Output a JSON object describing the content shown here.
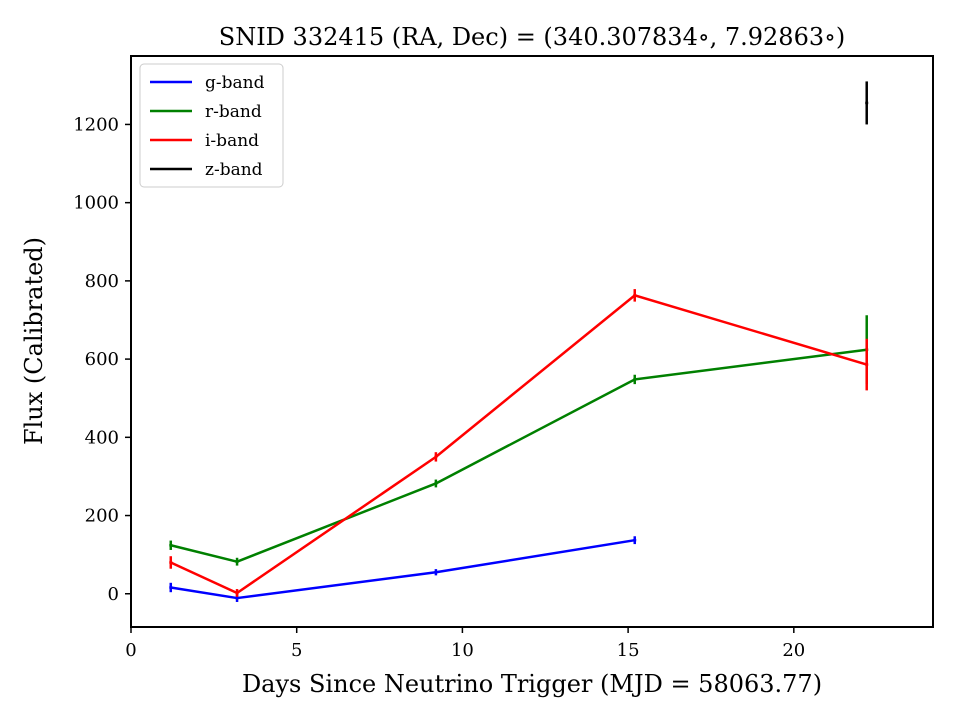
{
  "chart_data": {
    "type": "line",
    "title": "SNID 332415   (RA, Dec) = (340.307834∘, 7.92863∘)",
    "xlabel": "Days Since Neutrino Trigger (MJD = 58063.77)",
    "ylabel": "Flux (Calibrated)",
    "xlim": [
      0,
      24.2
    ],
    "ylim": [
      -85,
      1375
    ],
    "xticks": [
      0,
      5,
      10,
      15,
      20
    ],
    "yticks": [
      0,
      200,
      400,
      600,
      800,
      1000,
      1200
    ],
    "legend_position": "top-left",
    "grid": false,
    "series": [
      {
        "name": "g-band",
        "color": "#0000ff",
        "points": [
          {
            "x": 1.2,
            "y": 16,
            "err": 12
          },
          {
            "x": 3.2,
            "y": -11,
            "err": 10
          },
          {
            "x": 9.2,
            "y": 55,
            "err": 8
          },
          {
            "x": 15.2,
            "y": 137,
            "err": 10
          }
        ]
      },
      {
        "name": "r-band",
        "color": "#008000",
        "points": [
          {
            "x": 1.2,
            "y": 124,
            "err": 12
          },
          {
            "x": 3.2,
            "y": 82,
            "err": 10
          },
          {
            "x": 9.2,
            "y": 282,
            "err": 10
          },
          {
            "x": 15.2,
            "y": 548,
            "err": 12
          },
          {
            "x": 22.2,
            "y": 624,
            "err": 88
          }
        ]
      },
      {
        "name": "i-band",
        "color": "#ff0000",
        "points": [
          {
            "x": 1.2,
            "y": 80,
            "err": 16
          },
          {
            "x": 3.2,
            "y": 2,
            "err": 10
          },
          {
            "x": 9.2,
            "y": 350,
            "err": 12
          },
          {
            "x": 15.2,
            "y": 763,
            "err": 16
          },
          {
            "x": 22.2,
            "y": 586,
            "err": 66
          }
        ]
      },
      {
        "name": "z-band",
        "color": "#000000",
        "points": [
          {
            "x": 22.2,
            "y": 1255,
            "err": 55
          }
        ]
      }
    ]
  }
}
